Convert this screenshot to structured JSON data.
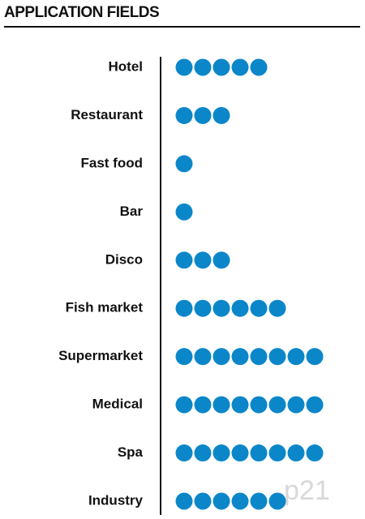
{
  "chart_data": {
    "type": "dot",
    "title": "APPLICATION FIELDS",
    "categories": [
      "Hotel",
      "Restaurant",
      "Fast food",
      "Bar",
      "Disco",
      "Fish market",
      "Supermarket",
      "Medical",
      "Spa",
      "Industry"
    ],
    "values": [
      5,
      3,
      1,
      1,
      3,
      6,
      8,
      8,
      8,
      6
    ],
    "color": "#0b87c9",
    "watermark": "p21"
  }
}
